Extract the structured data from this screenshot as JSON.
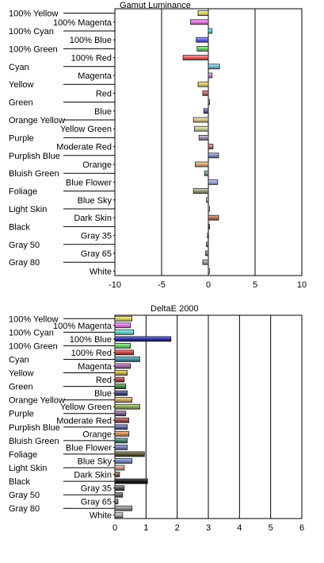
{
  "chart_data": [
    {
      "type": "bar",
      "orientation": "horizontal",
      "title": "Gamut Luminance",
      "categories": [
        "100% Yellow",
        "100% Magenta",
        "100% Cyan",
        "100% Blue",
        "100% Green",
        "100% Red",
        "Cyan",
        "Magenta",
        "Yellow",
        "Red",
        "Green",
        "Blue",
        "Orange Yellow",
        "Yellow Green",
        "Purple",
        "Moderate Red",
        "Purplish Blue",
        "Orange",
        "Bluish Green",
        "Blue Flower",
        "Foliage",
        "Blue Sky",
        "Light Skin",
        "Dark Skin",
        "Black",
        "Gray 35",
        "Gray 50",
        "Gray 65",
        "Gray 80",
        "White"
      ],
      "values": [
        -1.1,
        -1.9,
        0.4,
        -1.3,
        -1.2,
        -2.7,
        1.2,
        0.4,
        -1.1,
        -0.6,
        0.1,
        -0.5,
        -1.6,
        -1.5,
        -1.0,
        0.5,
        1.1,
        -1.4,
        -0.4,
        1.0,
        -1.6,
        -0.2,
        0.1,
        1.1,
        0.1,
        -0.1,
        -0.2,
        -0.3,
        -0.6,
        0.0
      ],
      "colors": [
        "#d9d36a",
        "#e07be0",
        "#6fd0cc",
        "#6a6ae6",
        "#6fd06f",
        "#e06464",
        "#7fb8cc",
        "#c890c8",
        "#d6cc6a",
        "#c86a6a",
        "#78a878",
        "#6a6aa8",
        "#d6c090",
        "#c8d09a",
        "#a090b0",
        "#c07878",
        "#8890c0",
        "#e0a878",
        "#70a898",
        "#9ea8d8",
        "#9a9a80",
        "#9ab0d8",
        "#e0c8b8",
        "#b07860",
        "#505050",
        "#707070",
        "#808080",
        "#909090",
        "#a0a0a0",
        "#d0d0d0"
      ],
      "xlim": [
        -10,
        10
      ],
      "xticks": [
        "-10",
        "-5",
        "0",
        "5",
        "10"
      ],
      "grid": true
    },
    {
      "type": "bar",
      "orientation": "horizontal",
      "title": "DeltaE 2000",
      "categories": [
        "100% Yellow",
        "100% Magenta",
        "100% Cyan",
        "100% Blue",
        "100% Green",
        "100% Red",
        "Cyan",
        "Magenta",
        "Yellow",
        "Red",
        "Green",
        "Blue",
        "Orange Yellow",
        "Yellow Green",
        "Purple",
        "Moderate Red",
        "Purplish Blue",
        "Orange",
        "Bluish Green",
        "Blue Flower",
        "Foliage",
        "Blue Sky",
        "Light Skin",
        "Dark Skin",
        "Black",
        "Gray 35",
        "Gray 50",
        "Gray 65",
        "Gray 80",
        "White"
      ],
      "values": [
        0.55,
        0.5,
        0.6,
        1.8,
        0.5,
        0.6,
        0.8,
        0.5,
        0.4,
        0.3,
        0.35,
        0.4,
        0.55,
        0.8,
        0.35,
        0.45,
        0.4,
        0.45,
        0.4,
        0.4,
        0.95,
        0.55,
        0.3,
        0.15,
        1.05,
        0.3,
        0.25,
        0.1,
        0.55,
        0.25
      ],
      "colors": [
        "#d9d36a",
        "#e07be0",
        "#6fd0cc",
        "#3a3aa0",
        "#6fd06f",
        "#c85050",
        "#4f90a0",
        "#a070a0",
        "#c0b050",
        "#a85050",
        "#508850",
        "#505088",
        "#c8a868",
        "#90a860",
        "#806890",
        "#a05858",
        "#6870a0",
        "#d09060",
        "#508878",
        "#7880b8",
        "#606040",
        "#7890c0",
        "#c8a090",
        "#906050",
        "#202020",
        "#606060",
        "#707070",
        "#808080",
        "#909090",
        "#b0b0b0"
      ],
      "xlim": [
        0,
        6
      ],
      "xticks": [
        "0",
        "1",
        "2",
        "3",
        "4",
        "5",
        "6"
      ],
      "grid": true
    }
  ]
}
